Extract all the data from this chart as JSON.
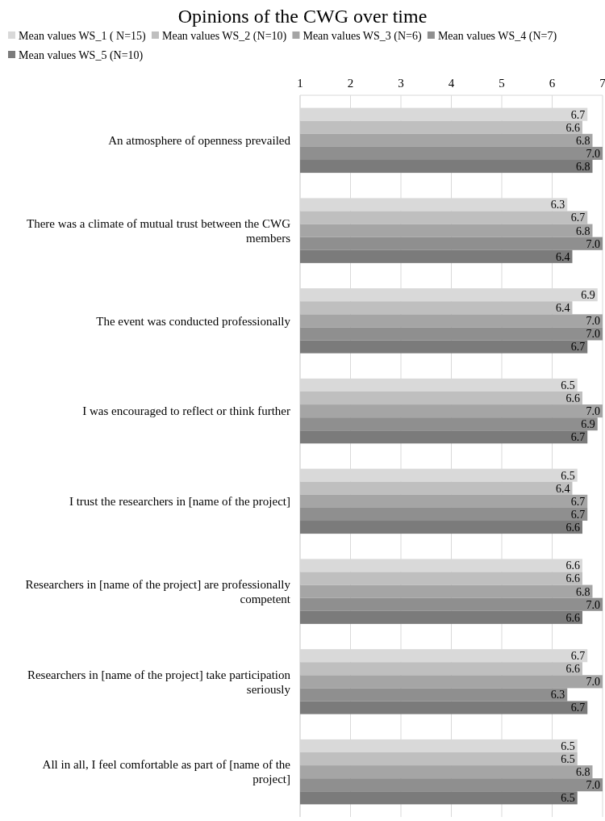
{
  "chart_data": {
    "type": "bar",
    "orientation": "horizontal",
    "title": "Opinions of the CWG over time",
    "categories": [
      "An atmosphere of openness prevailed",
      "There was a climate of mutual trust between the CWG members",
      "The event was conducted professionally",
      "I was encouraged to reflect or think further",
      "I trust the researchers in [name of the project]",
      "Researchers in [name of the project] are professionally competent",
      "Researchers in [name of the project] take participation seriously",
      "All in all, I feel comfortable as part of [name of the project]"
    ],
    "series": [
      {
        "name": "Mean values WS_1 ( N=15)",
        "color": "#d9d9d9",
        "values": [
          6.7,
          6.3,
          6.9,
          6.5,
          6.5,
          6.6,
          6.7,
          6.5
        ],
        "value_labels": [
          "6.7",
          "6.3",
          "6.9",
          "6.5",
          "6.5",
          "6.6",
          "6.7",
          "6.5"
        ]
      },
      {
        "name": "Mean values WS_2 (N=10)",
        "color": "#bfbfbf",
        "values": [
          6.6,
          6.7,
          6.4,
          6.6,
          6.4,
          6.6,
          6.6,
          6.5
        ],
        "value_labels": [
          "6.6",
          "6.7",
          "6.4",
          "6.6",
          "6.4",
          "6.6",
          "6.6",
          "6.5"
        ]
      },
      {
        "name": "Mean values WS_3 (N=6)",
        "color": "#a5a5a5",
        "values": [
          6.8,
          6.8,
          7.0,
          7.0,
          6.7,
          6.8,
          7.0,
          6.8
        ],
        "value_labels": [
          "6.8",
          "6.8",
          "7.0",
          "7.0",
          "6.7",
          "6.8",
          "7.0",
          "6.8"
        ]
      },
      {
        "name": "Mean values WS_4 (N=7)",
        "color": "#8f8f8f",
        "values": [
          7.0,
          7.0,
          7.0,
          6.9,
          6.7,
          7.0,
          6.3,
          7.0
        ],
        "value_labels": [
          "7.0",
          "7.0",
          "7.0",
          "6.9",
          "6.7",
          "7.0",
          "6.3",
          "7.0"
        ]
      },
      {
        "name": "Mean values WS_5 (N=10)",
        "color": "#7b7b7b",
        "values": [
          6.8,
          6.4,
          6.7,
          6.7,
          6.6,
          6.6,
          6.7,
          6.5
        ],
        "value_labels": [
          "6.8",
          "6.4",
          "6.7",
          "6.7",
          "6.6",
          "6.6",
          "6.7",
          "6.5"
        ]
      }
    ],
    "xlim": [
      1,
      7
    ],
    "xticks": [
      1,
      2,
      3,
      4,
      5,
      6,
      7
    ],
    "grid": "x",
    "legend": "top"
  }
}
